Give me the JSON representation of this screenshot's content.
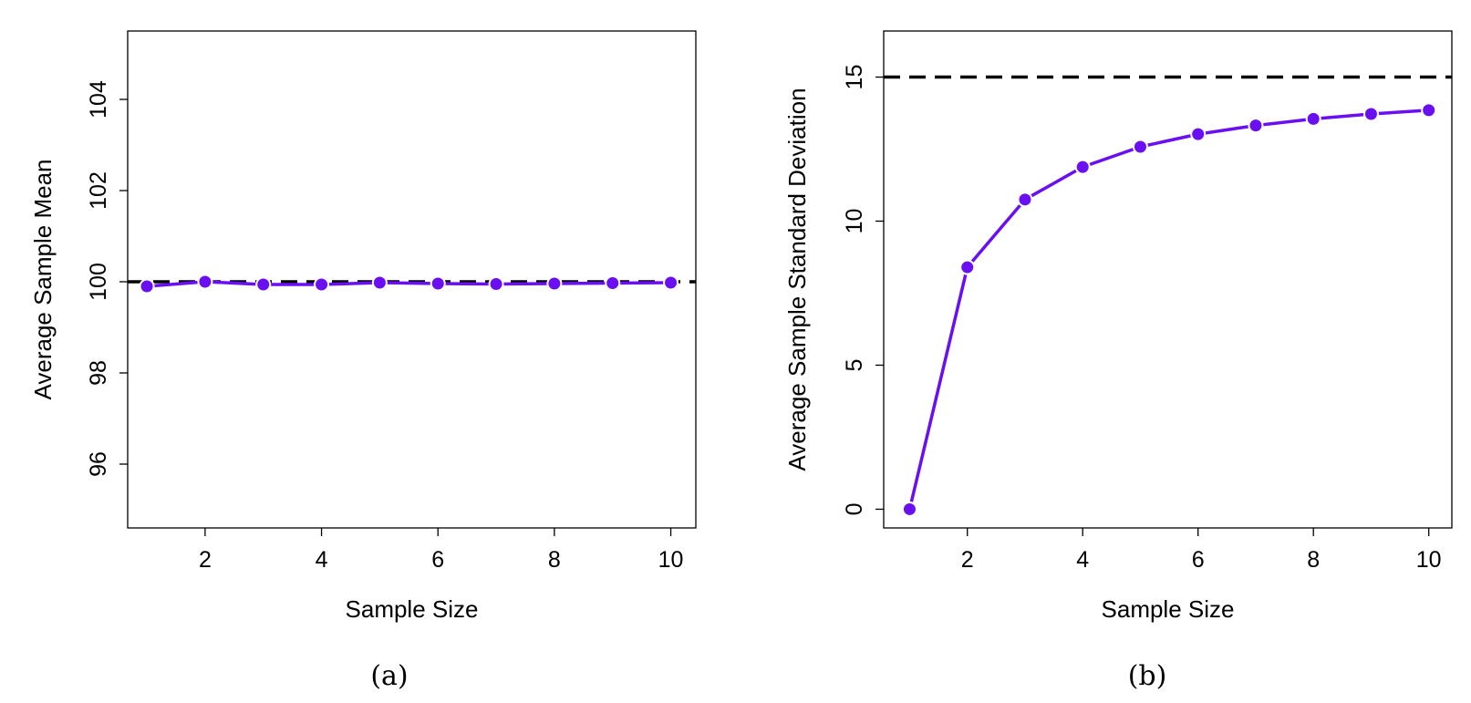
{
  "colors": {
    "series": "#6a0ff2",
    "reference": "#000000",
    "axis": "#000000",
    "background": "#ffffff"
  },
  "chart_data": [
    {
      "type": "line",
      "caption": "(a)",
      "title": "",
      "xlabel": "Sample Size",
      "ylabel": "Average Sample Mean",
      "xlim": [
        0.67,
        10.43
      ],
      "ylim": [
        94.6,
        105.5
      ],
      "xticks": [
        2,
        4,
        6,
        8,
        10
      ],
      "yticks": [
        96,
        98,
        100,
        102,
        104
      ],
      "grid": false,
      "x": [
        1,
        2,
        3,
        4,
        5,
        6,
        7,
        8,
        9,
        10
      ],
      "series": [
        {
          "values": [
            99.9,
            100.0,
            99.94,
            99.94,
            99.98,
            99.96,
            99.95,
            99.96,
            99.97,
            99.98
          ]
        }
      ],
      "reference_line": {
        "y": 100,
        "style": "dashed"
      }
    },
    {
      "type": "line",
      "caption": "(b)",
      "title": "",
      "xlabel": "Sample Size",
      "ylabel": "Average Sample Standard Deviation",
      "xlim": [
        0.55,
        10.4
      ],
      "ylim": [
        -0.65,
        16.6
      ],
      "xticks": [
        2,
        4,
        6,
        8,
        10
      ],
      "yticks": [
        0,
        5,
        10,
        15
      ],
      "grid": false,
      "x": [
        1,
        2,
        3,
        4,
        5,
        6,
        7,
        8,
        9,
        10
      ],
      "series": [
        {
          "values": [
            0.0,
            8.4,
            10.75,
            11.88,
            12.58,
            13.02,
            13.32,
            13.55,
            13.72,
            13.85
          ]
        }
      ],
      "reference_line": {
        "y": 15,
        "style": "dashed"
      }
    }
  ]
}
